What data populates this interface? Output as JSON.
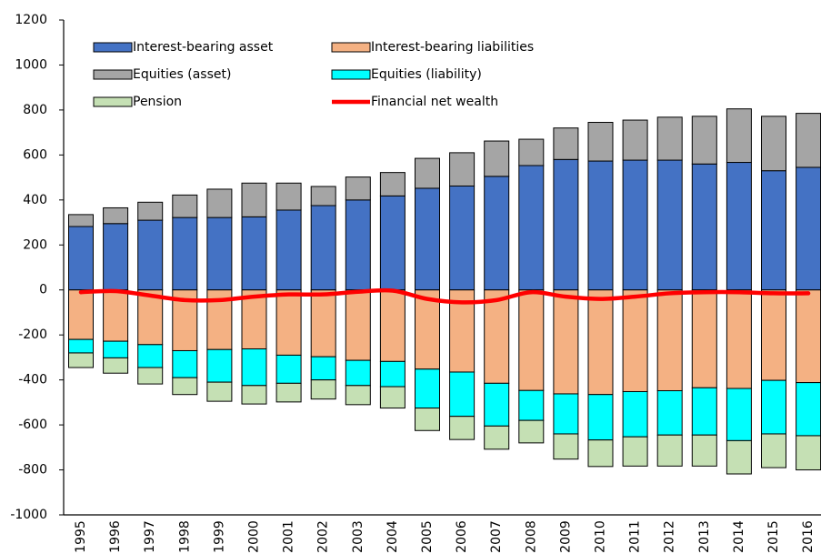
{
  "chart_data": {
    "type": "bar",
    "stacked": true,
    "categories": [
      "1995",
      "1996",
      "1997",
      "1998",
      "1999",
      "2000",
      "2001",
      "2002",
      "2003",
      "2004",
      "2005",
      "2006",
      "2007",
      "2008",
      "2009",
      "2010",
      "2011",
      "2012",
      "2013",
      "2014",
      "2015",
      "2016"
    ],
    "series": [
      {
        "name": "Interest-bearing asset",
        "color": "#4472c4",
        "values": [
          282,
          295,
          310,
          322,
          322,
          325,
          355,
          375,
          400,
          418,
          452,
          462,
          505,
          553,
          580,
          573,
          577,
          577,
          560,
          567,
          530,
          545
        ]
      },
      {
        "name": "Interest-bearing liabilities",
        "color": "#f4b183",
        "values": [
          -220,
          -228,
          -243,
          -270,
          -265,
          -262,
          -290,
          -297,
          -313,
          -318,
          -352,
          -365,
          -415,
          -447,
          -462,
          -465,
          -452,
          -448,
          -435,
          -438,
          -402,
          -412
        ]
      },
      {
        "name": "Equities (asset)",
        "color": "#a5a5a5",
        "values": [
          53,
          70,
          80,
          100,
          126,
          150,
          120,
          85,
          102,
          104,
          133,
          148,
          157,
          117,
          140,
          172,
          178,
          191,
          212,
          238,
          242,
          240
        ]
      },
      {
        "name": "Equities (liability)",
        "color": "#00ffff",
        "values": [
          -60,
          -74,
          -102,
          -120,
          -145,
          -163,
          -125,
          -103,
          -112,
          -112,
          -173,
          -197,
          -190,
          -133,
          -178,
          -202,
          -201,
          -197,
          -210,
          -232,
          -238,
          -236
        ]
      },
      {
        "name": "Pension",
        "color": "#c5e0b4",
        "values": [
          -65,
          -68,
          -73,
          -75,
          -85,
          -82,
          -83,
          -85,
          -85,
          -95,
          -100,
          -103,
          -103,
          -100,
          -112,
          -118,
          -130,
          -138,
          -138,
          -148,
          -150,
          -152
        ]
      },
      {
        "name": "Financial net wealth",
        "type": "line",
        "color": "#ff0000",
        "values": [
          -10,
          -5,
          -25,
          -45,
          -45,
          -30,
          -20,
          -20,
          -8,
          -3,
          -40,
          -55,
          -45,
          -10,
          -30,
          -40,
          -30,
          -15,
          -10,
          -10,
          -15,
          -15
        ]
      }
    ],
    "ylim": [
      -1000,
      1200
    ],
    "yticks": [
      -1000,
      -800,
      -600,
      -400,
      -200,
      0,
      200,
      400,
      600,
      800,
      1000,
      1200
    ]
  }
}
